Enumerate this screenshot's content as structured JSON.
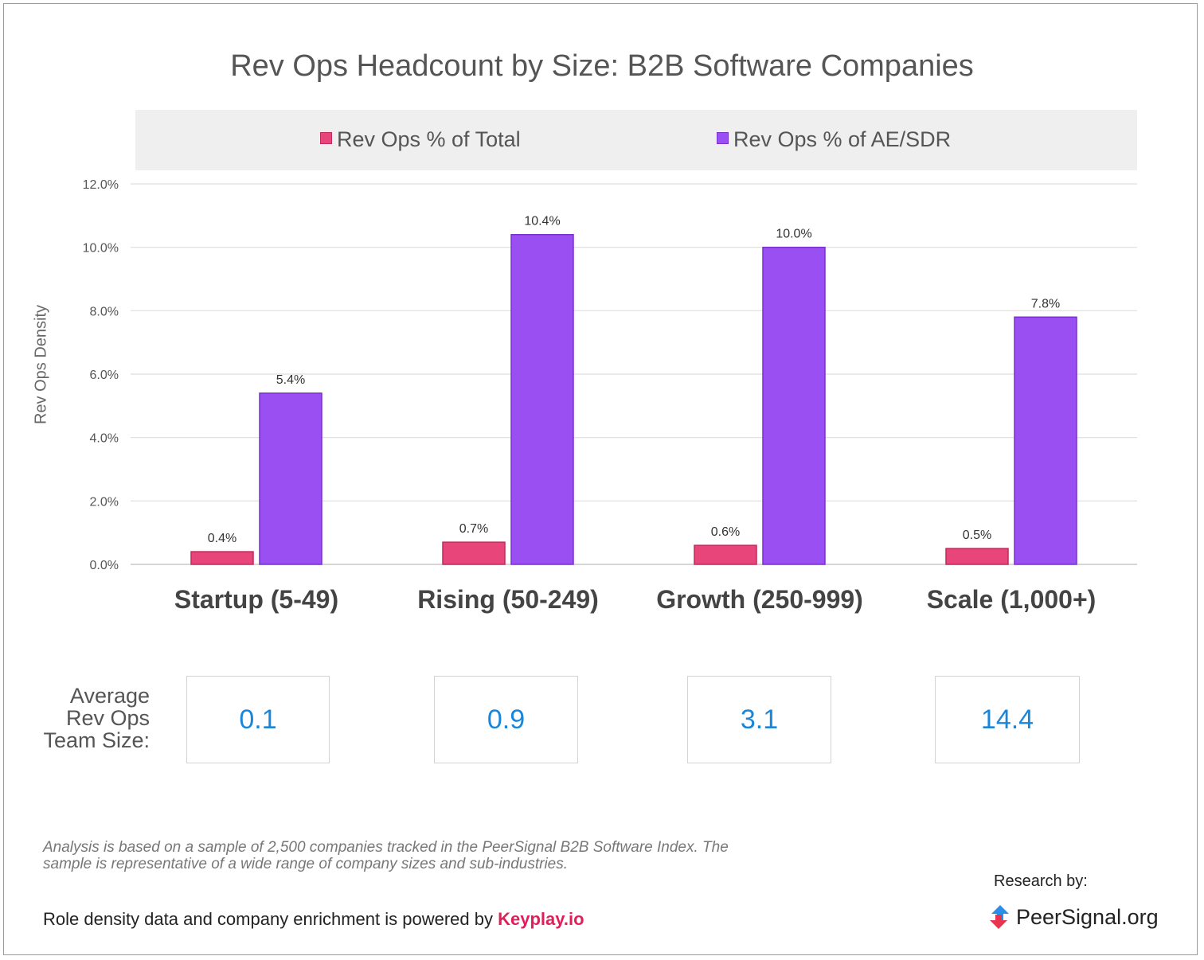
{
  "chart_data": {
    "type": "bar",
    "title": "Rev Ops Headcount by Size: B2B Software Companies",
    "ylabel": "Rev Ops Density",
    "ylim": [
      0,
      12
    ],
    "yticks": [
      "0.0%",
      "2.0%",
      "4.0%",
      "6.0%",
      "8.0%",
      "10.0%",
      "12.0%"
    ],
    "grid": true,
    "legend_position": "top",
    "categories": [
      "Startup (5-49)",
      "Rising (50-249)",
      "Growth (250-999)",
      "Scale (1,000+)"
    ],
    "series": [
      {
        "name": "Rev Ops % of Total",
        "color": "#e8457a",
        "values": [
          0.4,
          0.7,
          0.6,
          0.5
        ],
        "labels": [
          "0.4%",
          "0.7%",
          "0.6%",
          "0.5%"
        ]
      },
      {
        "name": "Rev Ops % of AE/SDR",
        "color": "#9a4ff2",
        "values": [
          5.4,
          10.4,
          10.0,
          7.8
        ],
        "labels": [
          "5.4%",
          "10.4%",
          "10.0%",
          "7.8%"
        ]
      }
    ]
  },
  "team_size": {
    "label_lines": [
      "Average",
      "Rev Ops",
      "Team Size:"
    ],
    "values": [
      "0.1",
      "0.9",
      "3.1",
      "14.4"
    ]
  },
  "footer": {
    "note": "Analysis is based on a sample of 2,500 companies tracked in the PeerSignal B2B Software Index. The sample is representative of a wide range of company sizes and sub-industries.",
    "powered_prefix": "Role density data and company enrichment is powered by ",
    "powered_brand": "Keyplay.io",
    "research_label": "Research by:",
    "logo_text": "PeerSignal.org",
    "logo_icon": "peersignal-arrows-icon"
  },
  "colors": {
    "series_total": "#e8457a",
    "series_ae_sdr": "#9a4ff2",
    "team_size_value": "#1a86d9",
    "brand_keyplay": "#e01f5a"
  }
}
